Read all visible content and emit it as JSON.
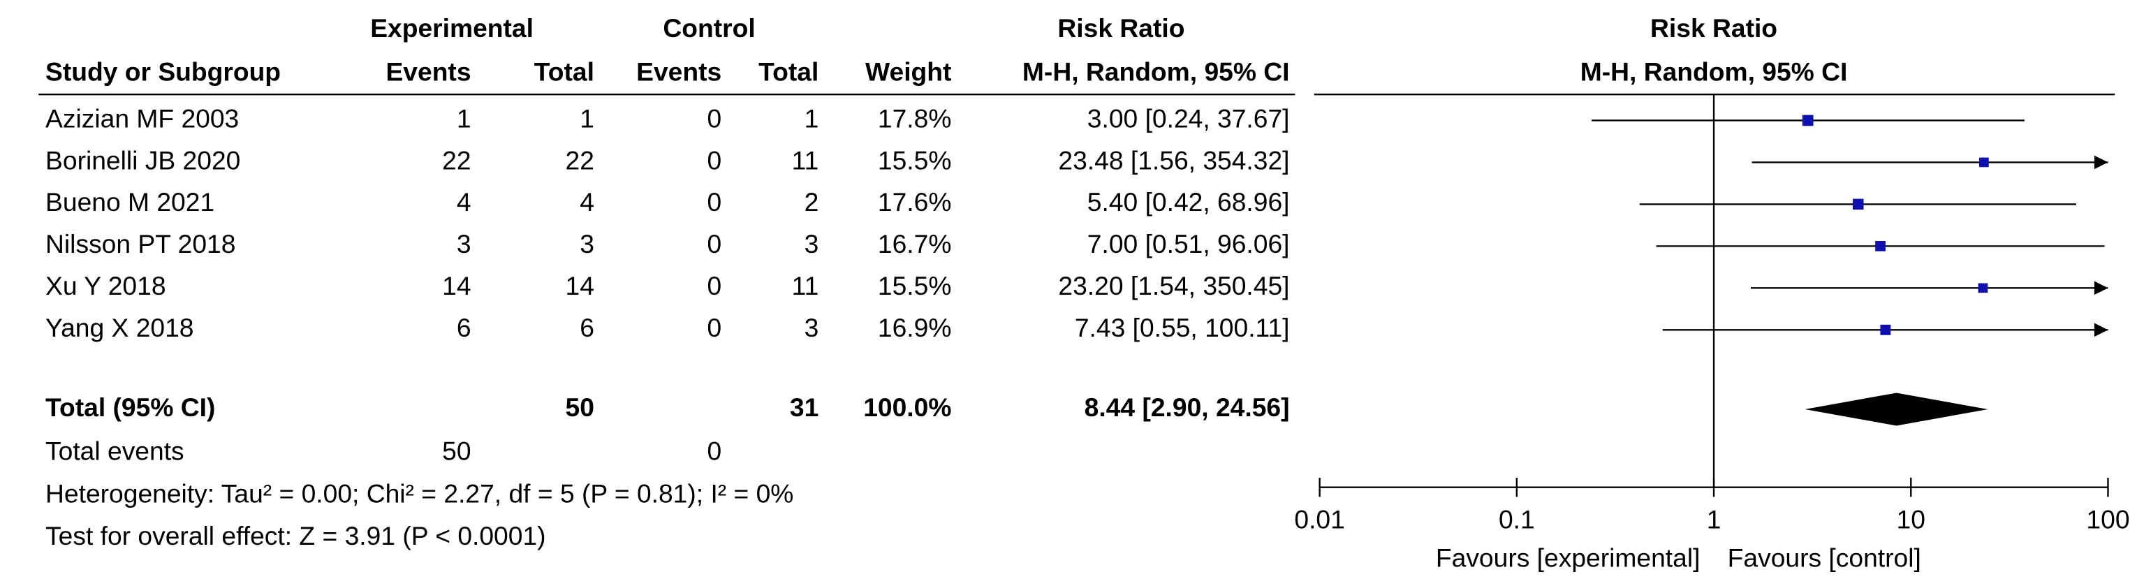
{
  "chart_data": {
    "type": "forest",
    "group_headers": [
      "Experimental",
      "Control",
      "Risk Ratio"
    ],
    "columns": [
      "Study or Subgroup",
      "Events",
      "Total",
      "Events",
      "Total",
      "Weight",
      "M-H, Random, 95% CI"
    ],
    "plot_title": "Risk Ratio",
    "plot_subtitle": "M-H, Random, 95% CI",
    "studies": [
      "Azizian MF 2003",
      "Borinelli JB 2020",
      "Bueno M 2021",
      "Nilsson PT 2018",
      "Xu Y 2018",
      "Yang X 2018"
    ],
    "exp_events": [
      1,
      22,
      4,
      3,
      14,
      6
    ],
    "exp_totals": [
      1,
      22,
      4,
      3,
      14,
      6
    ],
    "ctrl_events": [
      0,
      0,
      0,
      0,
      0,
      0
    ],
    "ctrl_totals": [
      1,
      11,
      2,
      3,
      11,
      3
    ],
    "weights": [
      17.8,
      15.5,
      17.6,
      16.7,
      15.5,
      16.9
    ],
    "weight_labels": [
      "17.8%",
      "15.5%",
      "17.6%",
      "16.7%",
      "15.5%",
      "16.9%"
    ],
    "rr": [
      3.0,
      23.48,
      5.4,
      7.0,
      23.2,
      7.43
    ],
    "ci_low": [
      0.24,
      1.56,
      0.42,
      0.51,
      1.54,
      0.55
    ],
    "ci_high": [
      37.67,
      354.32,
      68.96,
      96.06,
      350.45,
      100.11
    ],
    "ci_labels": [
      "3.00 [0.24, 37.67]",
      "23.48 [1.56, 354.32]",
      "5.40 [0.42, 68.96]",
      "7.00 [0.51, 96.06]",
      "23.20 [1.54, 350.45]",
      "7.43 [0.55, 100.11]"
    ],
    "total": {
      "label": "Total (95% CI)",
      "exp_total": 50,
      "ctrl_total": 31,
      "weight": 100.0,
      "weight_label": "100.0%",
      "rr": 8.44,
      "ci_low": 2.9,
      "ci_high": 24.56,
      "ci_label": "8.44 [2.90, 24.56]"
    },
    "total_events": {
      "label": "Total events",
      "exp": 50,
      "ctrl": 0
    },
    "heterogeneity": "Heterogeneity: Tau² = 0.00; Chi² = 2.27, df = 5 (P = 0.81); I² = 0%",
    "overall_effect": "Test for overall effect: Z = 3.91 (P < 0.0001)",
    "xlim": [
      0.01,
      100
    ],
    "xticks": [
      0.01,
      0.1,
      1,
      10,
      100
    ],
    "log_x": true,
    "reference_line": 1,
    "favours_left": "Favours [experimental]",
    "favours_right": "Favours [control]",
    "marker_color": "#1010b0"
  }
}
